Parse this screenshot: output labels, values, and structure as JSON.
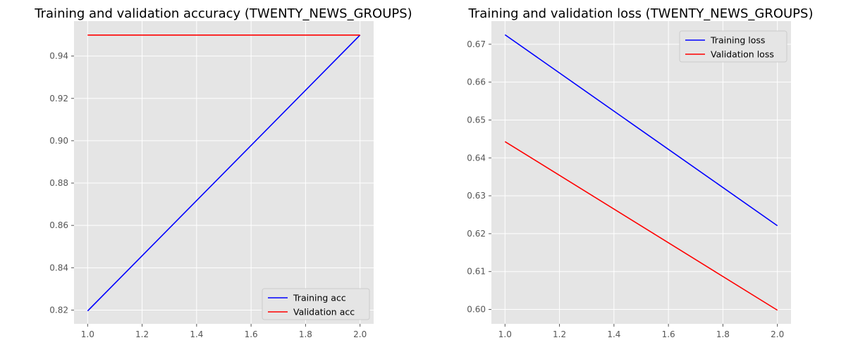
{
  "chart_data": [
    {
      "type": "line",
      "title": "Training and validation accuracy (TWENTY_NEWS_GROUPS)",
      "xlabel": "",
      "ylabel": "",
      "x": [
        1.0,
        2.0
      ],
      "xlim": [
        0.95,
        2.05
      ],
      "ylim": [
        0.8135,
        0.9565
      ],
      "xticks": [
        1.0,
        1.2,
        1.4,
        1.6,
        1.8,
        2.0
      ],
      "xtick_labels": [
        "1.0",
        "1.2",
        "1.4",
        "1.6",
        "1.8",
        "2.0"
      ],
      "yticks": [
        0.82,
        0.84,
        0.86,
        0.88,
        0.9,
        0.92,
        0.94
      ],
      "ytick_labels": [
        "0.82",
        "0.84",
        "0.86",
        "0.88",
        "0.90",
        "0.92",
        "0.94"
      ],
      "grid": true,
      "legend_position": "bottom-right",
      "series": [
        {
          "name": "Training acc",
          "color": "#0000ff",
          "values": [
            0.8196,
            0.9499
          ]
        },
        {
          "name": "Validation acc",
          "color": "#ff0000",
          "values": [
            0.9499,
            0.9499
          ]
        }
      ]
    },
    {
      "type": "line",
      "title": "Training and validation loss (TWENTY_NEWS_GROUPS)",
      "xlabel": "",
      "ylabel": "",
      "x": [
        1.0,
        2.0
      ],
      "xlim": [
        0.95,
        2.05
      ],
      "ylim": [
        0.5962,
        0.6761
      ],
      "xticks": [
        1.0,
        1.2,
        1.4,
        1.6,
        1.8,
        2.0
      ],
      "xtick_labels": [
        "1.0",
        "1.2",
        "1.4",
        "1.6",
        "1.8",
        "2.0"
      ],
      "yticks": [
        0.6,
        0.61,
        0.62,
        0.63,
        0.64,
        0.65,
        0.66,
        0.67
      ],
      "ytick_labels": [
        "0.60",
        "0.61",
        "0.62",
        "0.63",
        "0.64",
        "0.65",
        "0.66",
        "0.67"
      ],
      "grid": true,
      "legend_position": "top-right",
      "series": [
        {
          "name": "Training loss",
          "color": "#0000ff",
          "values": [
            0.6725,
            0.6221
          ]
        },
        {
          "name": "Validation loss",
          "color": "#ff0000",
          "values": [
            0.6443,
            0.5998
          ]
        }
      ]
    }
  ],
  "theme": {
    "plot_background": "#e5e5e5",
    "grid_color": "#ffffff",
    "tick_color": "#555555"
  }
}
